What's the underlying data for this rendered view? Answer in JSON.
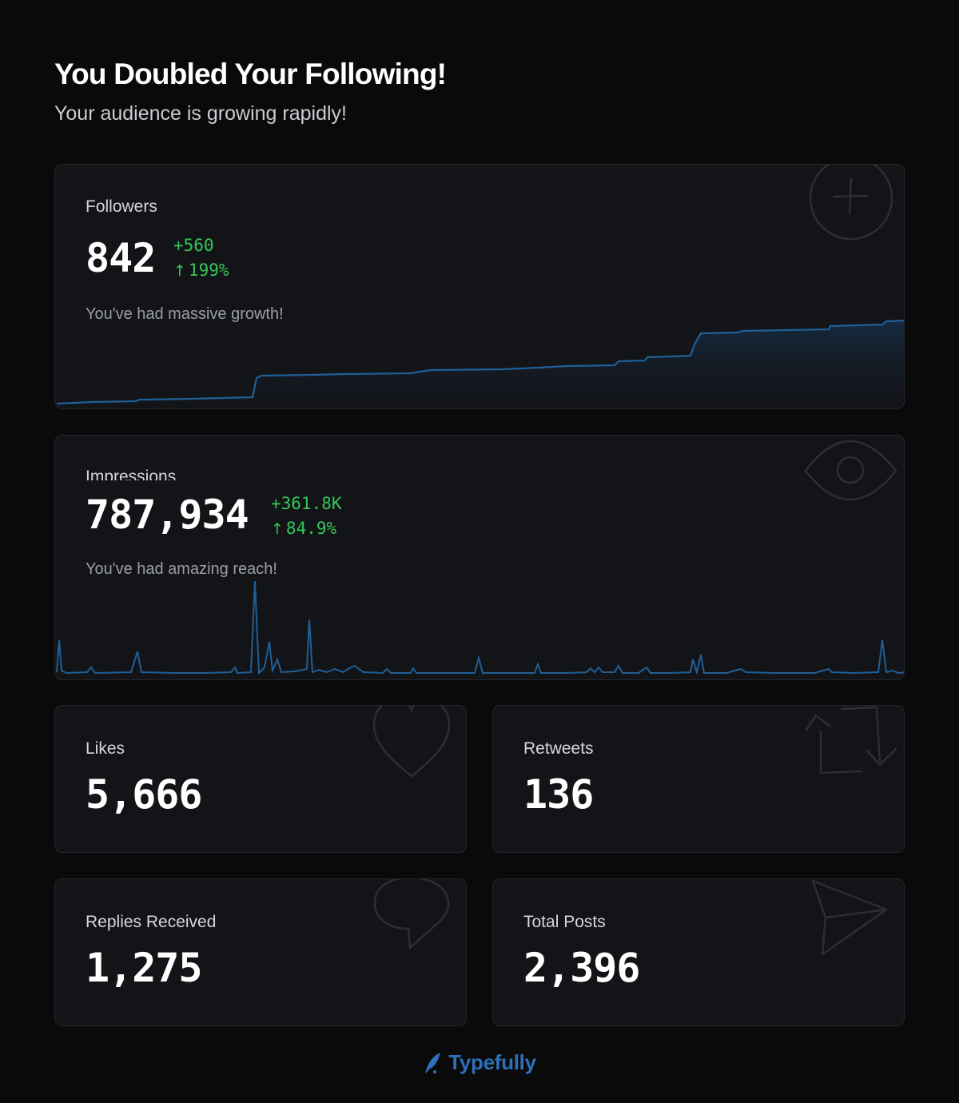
{
  "header": {
    "title": "You Doubled Your Following!",
    "subtitle": "Your audience is growing rapidly!"
  },
  "followers": {
    "label": "Followers",
    "value": "842",
    "delta_abs": "+560",
    "delta_pct": "199%",
    "note": "You've had massive growth!",
    "icon": "plus-circle-icon"
  },
  "impressions": {
    "label": "Impressions",
    "value": "787,934",
    "delta_abs": "+361.8K",
    "delta_pct": "84.9%",
    "note": "You've had amazing reach!",
    "icon": "eye-icon"
  },
  "likes": {
    "label": "Likes",
    "value": "5,666",
    "icon": "heart-icon"
  },
  "retweets": {
    "label": "Retweets",
    "value": "136",
    "icon": "retweet-icon"
  },
  "replies": {
    "label": "Replies Received",
    "value": "1,275",
    "icon": "speech-bubble-icon"
  },
  "posts": {
    "label": "Total Posts",
    "value": "2,396",
    "icon": "paper-plane-icon"
  },
  "brand": {
    "name": "Typefully",
    "icon": "quill-icon"
  },
  "colors": {
    "background": "#0a0a0b",
    "card": "#131418",
    "positive": "#34c759",
    "chart_line": "#1f5f96",
    "brand": "#2d6fb8"
  }
}
